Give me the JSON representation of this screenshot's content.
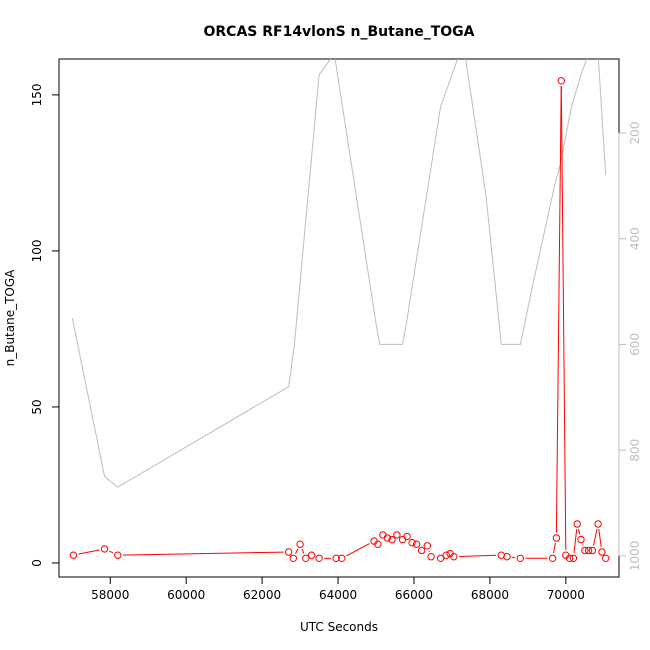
{
  "chart_data": {
    "type": "line",
    "title": "ORCAS RF14vlonS n_Butane_TOGA",
    "xlabel": "UTC Seconds",
    "ylabel": "n_Butane_TOGA",
    "xlim": [
      56650,
      71400
    ],
    "ylim": [
      -4.5,
      161.5
    ],
    "x_ticks": [
      58000,
      60000,
      62000,
      64000,
      66000,
      68000,
      70000
    ],
    "x_tick_labels": [
      "58000",
      "60000",
      "62000",
      "64000",
      "66000",
      "68000",
      "70000"
    ],
    "y_ticks": [
      0,
      50,
      100,
      150
    ],
    "y_tick_labels": [
      "0",
      "50",
      "100",
      "150"
    ],
    "right_axis": {
      "ylim": [
        1040,
        60
      ],
      "ticks": [
        200,
        400,
        600,
        800,
        1000
      ],
      "tick_labels": [
        "200",
        "400",
        "600",
        "800",
        "1000"
      ],
      "color": "#bebebe"
    },
    "colors": {
      "series": "#ff0000",
      "secondary": "#bebebe"
    },
    "series": [
      {
        "axis": "left",
        "style": "points-lines",
        "color": "#ff0000",
        "x": [
          57030,
          57850,
          58200,
          62700,
          62820,
          63000,
          63150,
          63300,
          63500,
          63950,
          64100,
          64950,
          65050,
          65180,
          65300,
          65420,
          65550,
          65700,
          65820,
          65950,
          66070,
          66200,
          66350,
          66450,
          66700,
          66850,
          66950,
          67050,
          68300,
          68450,
          68800,
          69650,
          69750,
          69880,
          70000,
          70100,
          70200,
          70300,
          70400,
          70500,
          70600,
          70700,
          70850,
          70950,
          71050
        ],
        "y": [
          2.5,
          4.5,
          2.5,
          3.5,
          1.5,
          6.0,
          1.5,
          2.5,
          1.5,
          1.5,
          1.5,
          7.0,
          6.0,
          9.0,
          8.0,
          7.5,
          9.0,
          7.5,
          8.5,
          6.5,
          6.0,
          4.0,
          5.5,
          2.0,
          1.5,
          2.5,
          3.0,
          2.0,
          2.5,
          2.0,
          1.5,
          1.5,
          8.0,
          154.5,
          2.5,
          1.5,
          1.5,
          12.5,
          7.5,
          4.0,
          4.0,
          4.0,
          12.5,
          3.5,
          1.5
        ]
      },
      {
        "axis": "right",
        "style": "line",
        "color": "#bebebe",
        "x": [
          57000,
          57850,
          58200,
          62700,
          62850,
          63500,
          63900,
          65000,
          65100,
          65700,
          65800,
          66700,
          67300,
          67900,
          68300,
          68800,
          69150,
          69700,
          69850,
          70150,
          70400,
          70550,
          70850,
          71050
        ],
        "y": [
          550,
          850,
          870,
          680,
          600,
          90,
          50,
          560,
          600,
          600,
          560,
          150,
          30,
          320,
          600,
          600,
          480,
          300,
          260,
          150,
          90,
          60,
          50,
          280
        ]
      }
    ]
  }
}
